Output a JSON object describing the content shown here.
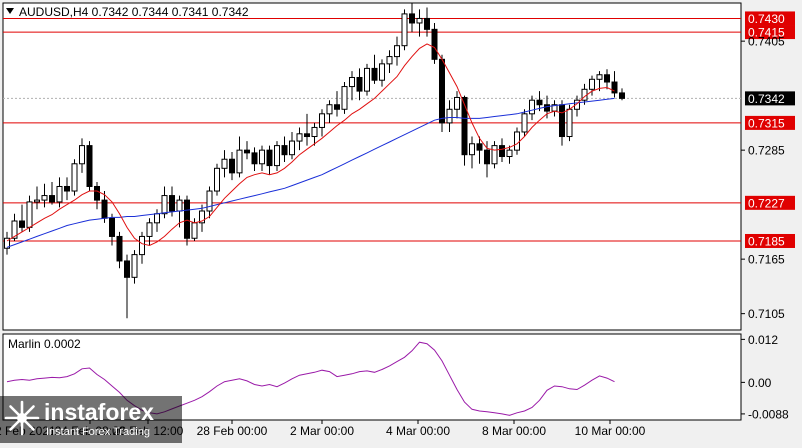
{
  "header": {
    "symbol": "AUDUSD,H4",
    "ohlc": "0.7342 0.7344 0.7341 0.7342"
  },
  "watermark": {
    "name": "instaforex",
    "tagline": "Instant Forex Trading"
  },
  "colors": {
    "background": "#ffffff",
    "frame": "#f0f0f0",
    "level_lines": "#e00000",
    "fast_ma": "#e01010",
    "slow_ma": "#1a2fd8",
    "candle_up_body": "#ffffff",
    "candle_down_body": "#000000",
    "oscillator": "#9a1aa8",
    "price_marker_bg": "#000000",
    "price_marker_text": "#ffffff"
  },
  "chart_data": [
    {
      "type": "candlestick",
      "ylim": [
        0.7087,
        0.7447
      ],
      "ticks": [
        "0.7405",
        "0.7285",
        "0.7165",
        "0.7105"
      ],
      "levels": [
        "0.7430",
        "0.7415",
        "0.7315",
        "0.7227",
        "0.7185"
      ],
      "last_price": "0.7342",
      "candles": [
        [
          0.7177,
          0.7195,
          0.717,
          0.7188
        ],
        [
          0.7188,
          0.7215,
          0.7185,
          0.7207
        ],
        [
          0.7207,
          0.7225,
          0.7195,
          0.72
        ],
        [
          0.72,
          0.7235,
          0.7195,
          0.7228
        ],
        [
          0.7228,
          0.7245,
          0.722,
          0.723
        ],
        [
          0.723,
          0.7248,
          0.7222,
          0.7235
        ],
        [
          0.7235,
          0.725,
          0.7225,
          0.7228
        ],
        [
          0.7228,
          0.7255,
          0.7222,
          0.7245
        ],
        [
          0.7245,
          0.7255,
          0.723,
          0.724
        ],
        [
          0.724,
          0.7275,
          0.7235,
          0.727
        ],
        [
          0.727,
          0.7298,
          0.726,
          0.729
        ],
        [
          0.729,
          0.7295,
          0.724,
          0.7245
        ],
        [
          0.7245,
          0.725,
          0.722,
          0.723
        ],
        [
          0.723,
          0.724,
          0.7205,
          0.721
        ],
        [
          0.721,
          0.7215,
          0.718,
          0.719
        ],
        [
          0.719,
          0.7195,
          0.7155,
          0.7163
        ],
        [
          0.7163,
          0.717,
          0.71,
          0.7145
        ],
        [
          0.7145,
          0.7175,
          0.7138,
          0.717
        ],
        [
          0.717,
          0.7195,
          0.716,
          0.719
        ],
        [
          0.719,
          0.721,
          0.718,
          0.7205
        ],
        [
          0.7205,
          0.722,
          0.7195,
          0.7215
        ],
        [
          0.7215,
          0.7245,
          0.721,
          0.7235
        ],
        [
          0.7235,
          0.7245,
          0.7212,
          0.7218
        ],
        [
          0.7218,
          0.7235,
          0.72,
          0.723
        ],
        [
          0.723,
          0.7235,
          0.718,
          0.7188
        ],
        [
          0.7188,
          0.721,
          0.7185,
          0.7205
        ],
        [
          0.7205,
          0.7225,
          0.7195,
          0.7218
        ],
        [
          0.7218,
          0.7245,
          0.721,
          0.724
        ],
        [
          0.724,
          0.727,
          0.7235,
          0.7265
        ],
        [
          0.7265,
          0.7285,
          0.7255,
          0.7275
        ],
        [
          0.7275,
          0.7283,
          0.7252,
          0.726
        ],
        [
          0.726,
          0.73,
          0.7255,
          0.7285
        ],
        [
          0.7285,
          0.7295,
          0.7275,
          0.7282
        ],
        [
          0.7282,
          0.7288,
          0.7262,
          0.727
        ],
        [
          0.727,
          0.729,
          0.7262,
          0.7285
        ],
        [
          0.7285,
          0.729,
          0.7258,
          0.7268
        ],
        [
          0.7268,
          0.7295,
          0.7262,
          0.729
        ],
        [
          0.729,
          0.73,
          0.7272,
          0.728
        ],
        [
          0.728,
          0.7305,
          0.7275,
          0.7295
        ],
        [
          0.7295,
          0.731,
          0.7285,
          0.7303
        ],
        [
          0.7303,
          0.7325,
          0.729,
          0.73
        ],
        [
          0.73,
          0.7315,
          0.729,
          0.731
        ],
        [
          0.731,
          0.733,
          0.73,
          0.7325
        ],
        [
          0.7325,
          0.734,
          0.7315,
          0.7335
        ],
        [
          0.7335,
          0.735,
          0.7322,
          0.733
        ],
        [
          0.733,
          0.736,
          0.7325,
          0.7355
        ],
        [
          0.7355,
          0.7372,
          0.734,
          0.7365
        ],
        [
          0.7365,
          0.7375,
          0.734,
          0.735
        ],
        [
          0.735,
          0.738,
          0.7345,
          0.7375
        ],
        [
          0.7375,
          0.739,
          0.7358,
          0.7362
        ],
        [
          0.7362,
          0.7385,
          0.7355,
          0.738
        ],
        [
          0.738,
          0.7395,
          0.737,
          0.7388
        ],
        [
          0.7388,
          0.741,
          0.7378,
          0.74
        ],
        [
          0.74,
          0.744,
          0.7395,
          0.7435
        ],
        [
          0.7435,
          0.7447,
          0.7415,
          0.7425
        ],
        [
          0.7425,
          0.744,
          0.741,
          0.743
        ],
        [
          0.743,
          0.7442,
          0.741,
          0.7418
        ],
        [
          0.7418,
          0.7425,
          0.738,
          0.7385
        ],
        [
          0.7385,
          0.739,
          0.7305,
          0.7315
        ],
        [
          0.7315,
          0.734,
          0.7305,
          0.733
        ],
        [
          0.733,
          0.735,
          0.732,
          0.7343
        ],
        [
          0.7343,
          0.7345,
          0.7268,
          0.728
        ],
        [
          0.728,
          0.73,
          0.7265,
          0.7292
        ],
        [
          0.7292,
          0.73,
          0.727,
          0.7285
        ],
        [
          0.7285,
          0.7295,
          0.7255,
          0.727
        ],
        [
          0.727,
          0.7295,
          0.7265,
          0.729
        ],
        [
          0.729,
          0.7298,
          0.7272,
          0.7278
        ],
        [
          0.7278,
          0.729,
          0.727,
          0.7285
        ],
        [
          0.7285,
          0.731,
          0.728,
          0.7305
        ],
        [
          0.7305,
          0.733,
          0.73,
          0.7325
        ],
        [
          0.7325,
          0.7345,
          0.7318,
          0.734
        ],
        [
          0.734,
          0.735,
          0.7328,
          0.7335
        ],
        [
          0.7335,
          0.7345,
          0.732,
          0.7328
        ],
        [
          0.7328,
          0.734,
          0.7322,
          0.7335
        ],
        [
          0.7335,
          0.734,
          0.729,
          0.73
        ],
        [
          0.73,
          0.7335,
          0.7295,
          0.733
        ],
        [
          0.733,
          0.7345,
          0.7322,
          0.734
        ],
        [
          0.734,
          0.7358,
          0.7335,
          0.7352
        ],
        [
          0.7352,
          0.7367,
          0.7345,
          0.7363
        ],
        [
          0.7363,
          0.7372,
          0.735,
          0.7368
        ],
        [
          0.7368,
          0.7374,
          0.7352,
          0.736
        ],
        [
          0.736,
          0.7372,
          0.7343,
          0.7348
        ],
        [
          0.7348,
          0.7353,
          0.734,
          0.7342
        ]
      ],
      "fast_ma": [
        0.7185,
        0.719,
        0.7195,
        0.72,
        0.7205,
        0.721,
        0.7214,
        0.722,
        0.7225,
        0.723,
        0.7236,
        0.724,
        0.724,
        0.7236,
        0.7228,
        0.7215,
        0.72,
        0.7188,
        0.7182,
        0.718,
        0.7184,
        0.719,
        0.7198,
        0.7205,
        0.7208,
        0.7205,
        0.7207,
        0.7212,
        0.7222,
        0.7232,
        0.724,
        0.7248,
        0.7255,
        0.7258,
        0.726,
        0.7258,
        0.726,
        0.7265,
        0.7272,
        0.728,
        0.7286,
        0.7292,
        0.7298,
        0.7305,
        0.7312,
        0.7318,
        0.7325,
        0.733,
        0.7336,
        0.7342,
        0.735,
        0.7358,
        0.7366,
        0.7378,
        0.7388,
        0.7397,
        0.7402,
        0.7398,
        0.7385,
        0.737,
        0.7355,
        0.7335,
        0.7315,
        0.7298,
        0.7287,
        0.7285,
        0.7286,
        0.7288,
        0.7292,
        0.73,
        0.731,
        0.7318,
        0.7325,
        0.7328,
        0.7326,
        0.733,
        0.7336,
        0.7344,
        0.735,
        0.7353,
        0.7354,
        0.735
      ],
      "slow_ma": [
        0.7178,
        0.7181,
        0.7184,
        0.7187,
        0.719,
        0.7193,
        0.7196,
        0.7199,
        0.7202,
        0.7204,
        0.7206,
        0.7208,
        0.7209,
        0.721,
        0.7211,
        0.7211,
        0.7212,
        0.7212,
        0.7213,
        0.7214,
        0.7215,
        0.7216,
        0.7217,
        0.7218,
        0.7219,
        0.722,
        0.7221,
        0.7223,
        0.7225,
        0.7227,
        0.7229,
        0.7231,
        0.7233,
        0.7235,
        0.7237,
        0.7239,
        0.7241,
        0.7243,
        0.7246,
        0.7249,
        0.7252,
        0.7255,
        0.7258,
        0.7262,
        0.7266,
        0.727,
        0.7274,
        0.7278,
        0.7282,
        0.7286,
        0.729,
        0.7294,
        0.7298,
        0.7302,
        0.7306,
        0.731,
        0.7314,
        0.7318,
        0.732,
        0.7321,
        0.7321,
        0.732,
        0.732,
        0.732,
        0.7321,
        0.7322,
        0.7323,
        0.7324,
        0.7325,
        0.7327,
        0.7329,
        0.7331,
        0.7333,
        0.7334,
        0.7335,
        0.7336,
        0.7337,
        0.7338,
        0.7339,
        0.734,
        0.7341,
        0.7342
      ]
    },
    {
      "type": "line",
      "name": "Marlin 0.0002",
      "ylim": [
        -0.0105,
        0.0135
      ],
      "ticks": [
        "0.012",
        "0.00",
        "-0.0088"
      ],
      "values": [
        0.0002,
        0.0006,
        0.0008,
        0.0006,
        0.001,
        0.0012,
        0.0014,
        0.0013,
        0.0016,
        0.0024,
        0.0038,
        0.004,
        0.0022,
        0.0008,
        -0.001,
        -0.0028,
        -0.005,
        -0.0065,
        -0.0078,
        -0.0085,
        -0.0088,
        -0.0082,
        -0.0074,
        -0.0066,
        -0.0058,
        -0.005,
        -0.004,
        -0.0026,
        -0.001,
        0.0002,
        0.0006,
        0.001,
        0.0004,
        -0.0006,
        -0.001,
        -0.0006,
        -0.0012,
        -0.0002,
        0.001,
        0.002,
        0.0024,
        0.0028,
        0.0034,
        0.003,
        0.0016,
        0.002,
        0.0024,
        0.003,
        0.0032,
        0.0028,
        0.0036,
        0.0046,
        0.0058,
        0.007,
        0.0088,
        0.0112,
        0.0108,
        0.009,
        0.006,
        0.002,
        -0.002,
        -0.0055,
        -0.0075,
        -0.008,
        -0.0082,
        -0.0085,
        -0.0088,
        -0.0092,
        -0.0085,
        -0.008,
        -0.007,
        -0.005,
        -0.0022,
        -0.001,
        -0.0012,
        -0.0018,
        -0.002,
        -0.0008,
        0.0006,
        0.0018,
        0.0012,
        0.0002
      ]
    }
  ],
  "time_axis": [
    "22 Feb 2021",
    "24 Feb 08:00",
    "26 Feb 12:00",
    "28 Feb 00:00",
    "2 Mar 00:00",
    "4 Mar 00:00",
    "8 Mar 00:00",
    "10 Mar 00:00"
  ]
}
